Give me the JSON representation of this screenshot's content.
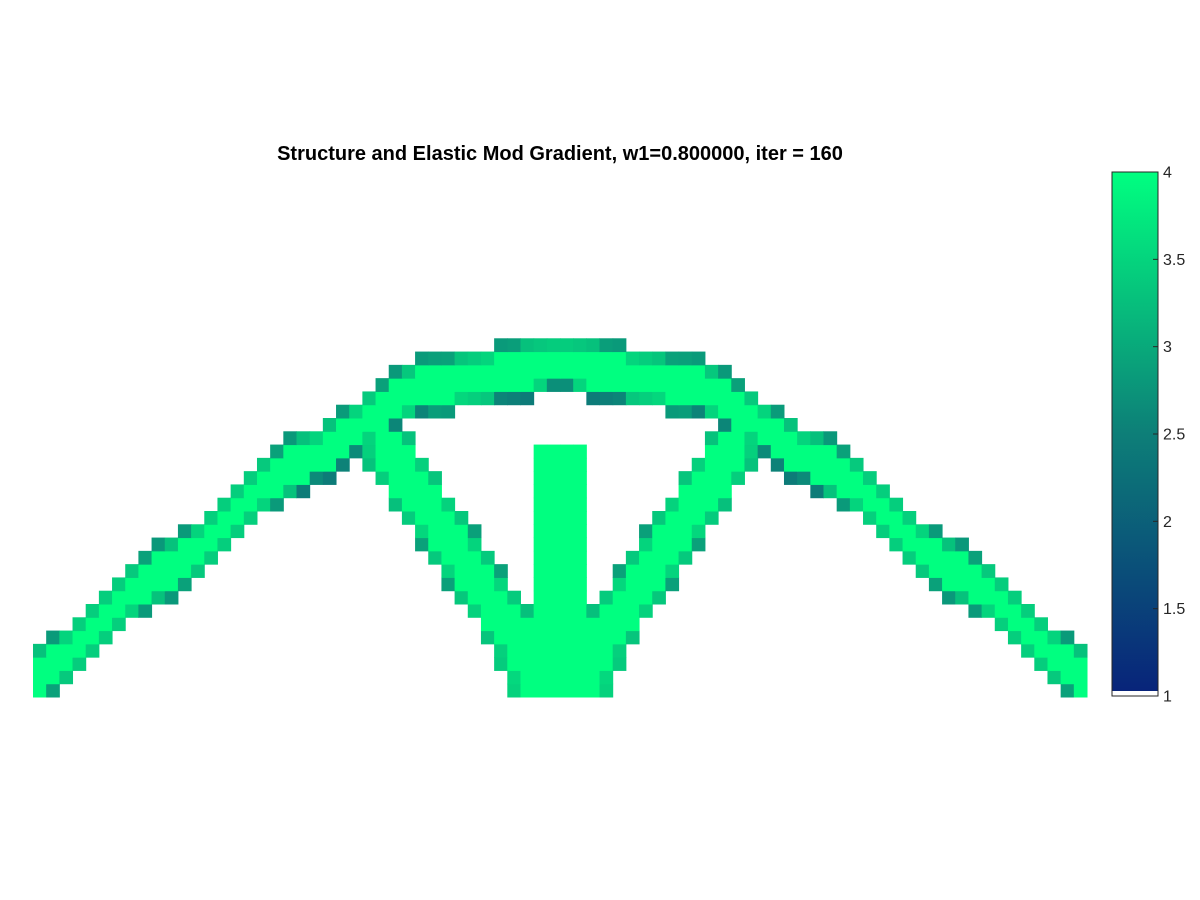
{
  "title": "Structure and Elastic Mod Gradient, w1=0.800000, iter = 160",
  "colors": {
    "low": "#08237a",
    "mid": "#0d7f78",
    "high": "#00ff80",
    "background": "#ffffff"
  },
  "chart_data": {
    "type": "heatmap",
    "title": "Structure and Elastic Mod Gradient, w1=0.800000, iter = 160",
    "grid": {
      "cols": 80,
      "rows": 28
    },
    "colorbar": {
      "clim": [
        1,
        4
      ],
      "ticks": [
        1,
        1.5,
        2,
        2.5,
        3,
        3.5,
        4
      ],
      "tick_labels": [
        "1",
        "1.5",
        "2",
        "2.5",
        "3",
        "3.5",
        "4"
      ]
    },
    "structure": {
      "description_of_members": "arch with central vertical strut and two diagonal struts; values mostly 4 in core, 2.5-3 along edges",
      "arch_centerline_points": [
        [
          0,
          1.5
        ],
        [
          10,
          9.5
        ],
        [
          20,
          17.5
        ],
        [
          30,
          23.5
        ],
        [
          40,
          25.0
        ],
        [
          50,
          23.5
        ],
        [
          60,
          17.5
        ],
        [
          70,
          9.5
        ],
        [
          80,
          1.5
        ]
      ],
      "arch_half_width": 2.3,
      "vertical_strut": {
        "x": 40,
        "y_range": [
          0,
          19
        ],
        "half_width": 2.5
      },
      "diagonal_struts": [
        {
          "from": [
            27,
            18.5
          ],
          "to": [
            38,
            2.5
          ],
          "half_width": 2.0
        },
        {
          "from": [
            53,
            18.5
          ],
          "to": [
            42,
            2.5
          ],
          "half_width": 2.0
        }
      ],
      "bottom_hub": {
        "center": [
          40,
          2.5
        ],
        "radius": 4.6
      },
      "core_value": 4,
      "edge_value": 2.9,
      "dark_zone_value": 2.4
    }
  }
}
